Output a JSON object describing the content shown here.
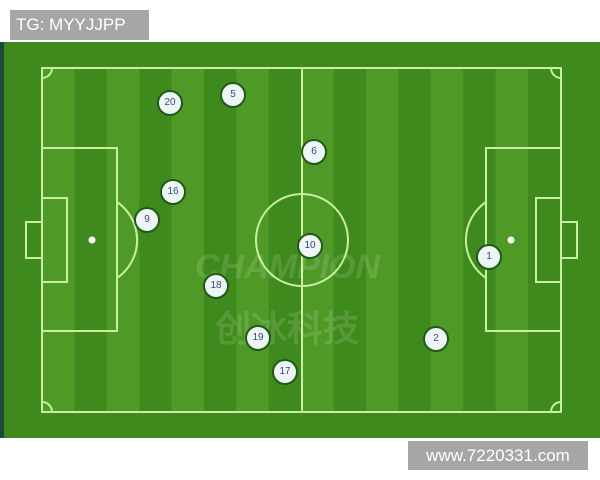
{
  "header_label": "TG: MYYJJPP",
  "footer_label": "www.7220331.com",
  "watermark": {
    "brand": "CHAMPION",
    "chinese": "创冰科技"
  },
  "colors": {
    "grass_dark": "#3f8a1c",
    "grass_light": "#4f9a26",
    "lines": "#c8f0a0",
    "player_fill": "#eef5f7"
  },
  "players": [
    {
      "number": "20"
    },
    {
      "number": "5"
    },
    {
      "number": "6"
    },
    {
      "number": "16"
    },
    {
      "number": "9"
    },
    {
      "number": "10"
    },
    {
      "number": "1"
    },
    {
      "number": "18"
    },
    {
      "number": "19"
    },
    {
      "number": "17"
    },
    {
      "number": "2"
    }
  ]
}
